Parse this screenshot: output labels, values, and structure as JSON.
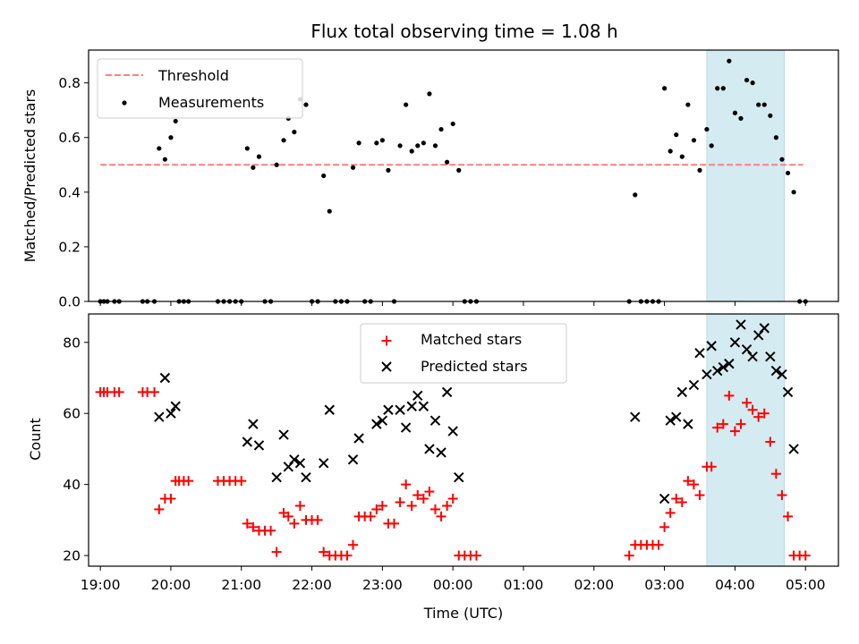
{
  "chart_data": [
    {
      "type": "scatter",
      "title": "Flux total observing time = 1.08 h",
      "xlabel": "",
      "ylabel": "Matched/Predicted stars",
      "xlim": [
        "18:50",
        "05:28"
      ],
      "ylim": [
        0,
        0.92
      ],
      "yticks": [
        0.0,
        0.2,
        0.4,
        0.6,
        0.8
      ],
      "ytick_labels": [
        "0.0",
        "0.2",
        "0.4",
        "0.6",
        "0.8"
      ],
      "shaded_span": [
        "03:36",
        "04:42"
      ],
      "shade_color": "#d4ebf1",
      "threshold": {
        "name": "Threshold",
        "y": 0.5,
        "x_range": [
          "19:00",
          "04:58"
        ],
        "color": "#ff7f7f"
      },
      "legend": {
        "position": "upper left",
        "entries": [
          "Threshold",
          "Measurements"
        ]
      },
      "series": [
        {
          "name": "Measurements",
          "color": "#000000",
          "points": [
            [
              "19:00",
              0
            ],
            [
              "19:03",
              0
            ],
            [
              "19:06",
              0
            ],
            [
              "19:12",
              0
            ],
            [
              "19:16",
              0
            ],
            [
              "19:36",
              0
            ],
            [
              "19:40",
              0
            ],
            [
              "19:46",
              0
            ],
            [
              "19:50",
              0.56
            ],
            [
              "19:55",
              0.52
            ],
            [
              "20:00",
              0.6
            ],
            [
              "20:04",
              0.66
            ],
            [
              "20:07",
              0
            ],
            [
              "20:11",
              0
            ],
            [
              "20:15",
              0
            ],
            [
              "20:40",
              0
            ],
            [
              "20:45",
              0
            ],
            [
              "20:50",
              0
            ],
            [
              "20:55",
              0
            ],
            [
              "21:00",
              0
            ],
            [
              "21:05",
              0.56
            ],
            [
              "21:10",
              0.49
            ],
            [
              "21:15",
              0.53
            ],
            [
              "21:20",
              0
            ],
            [
              "21:25",
              0
            ],
            [
              "21:30",
              0.5
            ],
            [
              "21:36",
              0.59
            ],
            [
              "21:40",
              0.67
            ],
            [
              "21:45",
              0.62
            ],
            [
              "21:50",
              0.74
            ],
            [
              "21:55",
              0.72
            ],
            [
              "22:00",
              0
            ],
            [
              "22:05",
              0
            ],
            [
              "22:10",
              0.46
            ],
            [
              "22:15",
              0.33
            ],
            [
              "22:20",
              0
            ],
            [
              "22:25",
              0
            ],
            [
              "22:30",
              0
            ],
            [
              "22:35",
              0.49
            ],
            [
              "22:40",
              0.58
            ],
            [
              "22:45",
              0
            ],
            [
              "22:50",
              0
            ],
            [
              "22:55",
              0.58
            ],
            [
              "23:00",
              0.59
            ],
            [
              "23:05",
              0.48
            ],
            [
              "23:10",
              0
            ],
            [
              "23:15",
              0.57
            ],
            [
              "23:20",
              0.72
            ],
            [
              "23:25",
              0.55
            ],
            [
              "23:30",
              0.57
            ],
            [
              "23:35",
              0.58
            ],
            [
              "23:40",
              0.76
            ],
            [
              "23:45",
              0.57
            ],
            [
              "23:50",
              0.63
            ],
            [
              "23:55",
              0.51
            ],
            [
              "00:00",
              0.65
            ],
            [
              "00:05",
              0.48
            ],
            [
              "00:10",
              0
            ],
            [
              "00:15",
              0
            ],
            [
              "00:20",
              0
            ],
            [
              "02:30",
              0
            ],
            [
              "02:35",
              0.39
            ],
            [
              "02:40",
              0
            ],
            [
              "02:45",
              0
            ],
            [
              "02:50",
              0
            ],
            [
              "02:55",
              0
            ],
            [
              "03:00",
              0.78
            ],
            [
              "03:05",
              0.55
            ],
            [
              "03:10",
              0.61
            ],
            [
              "03:15",
              0.53
            ],
            [
              "03:20",
              0.72
            ],
            [
              "03:25",
              0.59
            ],
            [
              "03:30",
              0.48
            ],
            [
              "03:36",
              0.63
            ],
            [
              "03:40",
              0.57
            ],
            [
              "03:45",
              0.78
            ],
            [
              "03:50",
              0.78
            ],
            [
              "03:55",
              0.88
            ],
            [
              "04:00",
              0.69
            ],
            [
              "04:05",
              0.67
            ],
            [
              "04:10",
              0.81
            ],
            [
              "04:15",
              0.8
            ],
            [
              "04:20",
              0.72
            ],
            [
              "04:25",
              0.72
            ],
            [
              "04:30",
              0.68
            ],
            [
              "04:35",
              0.6
            ],
            [
              "04:40",
              0.52
            ],
            [
              "04:45",
              0.47
            ],
            [
              "04:50",
              0.4
            ],
            [
              "04:55",
              0
            ],
            [
              "05:00",
              0
            ]
          ]
        }
      ]
    },
    {
      "type": "scatter",
      "title": "",
      "xlabel": "Time (UTC)",
      "ylabel": "Count",
      "xlim": [
        "18:50",
        "05:28"
      ],
      "ylim": [
        17,
        88
      ],
      "yticks": [
        20,
        40,
        60,
        80
      ],
      "ytick_labels": [
        "20",
        "40",
        "60",
        "80"
      ],
      "xticks": [
        "19:00",
        "20:00",
        "21:00",
        "22:00",
        "23:00",
        "00:00",
        "01:00",
        "02:00",
        "03:00",
        "04:00",
        "05:00"
      ],
      "shaded_span": [
        "03:36",
        "04:42"
      ],
      "shade_color": "#d4ebf1",
      "legend": {
        "position": "upper center",
        "entries": [
          "Matched stars",
          "Predicted stars"
        ]
      },
      "series": [
        {
          "name": "Matched stars",
          "marker": "+",
          "color": "#ff0000",
          "points": [
            [
              "19:00",
              66
            ],
            [
              "19:03",
              66
            ],
            [
              "19:06",
              66
            ],
            [
              "19:12",
              66
            ],
            [
              "19:16",
              66
            ],
            [
              "19:36",
              66
            ],
            [
              "19:40",
              66
            ],
            [
              "19:46",
              66
            ],
            [
              "19:50",
              33
            ],
            [
              "19:55",
              36
            ],
            [
              "20:00",
              36
            ],
            [
              "20:04",
              41
            ],
            [
              "20:07",
              41
            ],
            [
              "20:11",
              41
            ],
            [
              "20:15",
              41
            ],
            [
              "20:40",
              41
            ],
            [
              "20:45",
              41
            ],
            [
              "20:50",
              41
            ],
            [
              "20:55",
              41
            ],
            [
              "21:00",
              41
            ],
            [
              "21:05",
              29
            ],
            [
              "21:10",
              28
            ],
            [
              "21:15",
              27
            ],
            [
              "21:20",
              27
            ],
            [
              "21:25",
              27
            ],
            [
              "21:30",
              21
            ],
            [
              "21:36",
              32
            ],
            [
              "21:40",
              31
            ],
            [
              "21:45",
              29
            ],
            [
              "21:50",
              34
            ],
            [
              "21:55",
              30
            ],
            [
              "22:00",
              30
            ],
            [
              "22:05",
              30
            ],
            [
              "22:10",
              21
            ],
            [
              "22:15",
              20
            ],
            [
              "22:20",
              20
            ],
            [
              "22:25",
              20
            ],
            [
              "22:30",
              20
            ],
            [
              "22:35",
              23
            ],
            [
              "22:40",
              31
            ],
            [
              "22:45",
              31
            ],
            [
              "22:50",
              31
            ],
            [
              "22:55",
              33
            ],
            [
              "23:00",
              34
            ],
            [
              "23:05",
              29
            ],
            [
              "23:10",
              29
            ],
            [
              "23:15",
              35
            ],
            [
              "23:20",
              40
            ],
            [
              "23:25",
              34
            ],
            [
              "23:30",
              37
            ],
            [
              "23:35",
              36
            ],
            [
              "23:40",
              38
            ],
            [
              "23:45",
              33
            ],
            [
              "23:50",
              31
            ],
            [
              "23:55",
              34
            ],
            [
              "00:00",
              36
            ],
            [
              "00:05",
              20
            ],
            [
              "00:10",
              20
            ],
            [
              "00:15",
              20
            ],
            [
              "00:20",
              20
            ],
            [
              "02:30",
              20
            ],
            [
              "02:35",
              23
            ],
            [
              "02:40",
              23
            ],
            [
              "02:45",
              23
            ],
            [
              "02:50",
              23
            ],
            [
              "02:55",
              23
            ],
            [
              "03:00",
              28
            ],
            [
              "03:05",
              32
            ],
            [
              "03:10",
              36
            ],
            [
              "03:15",
              35
            ],
            [
              "03:20",
              41
            ],
            [
              "03:25",
              40
            ],
            [
              "03:30",
              37
            ],
            [
              "03:36",
              45
            ],
            [
              "03:40",
              45
            ],
            [
              "03:45",
              56
            ],
            [
              "03:50",
              57
            ],
            [
              "03:55",
              65
            ],
            [
              "04:00",
              55
            ],
            [
              "04:05",
              57
            ],
            [
              "04:10",
              63
            ],
            [
              "04:15",
              61
            ],
            [
              "04:20",
              59
            ],
            [
              "04:25",
              60
            ],
            [
              "04:30",
              52
            ],
            [
              "04:35",
              43
            ],
            [
              "04:40",
              37
            ],
            [
              "04:45",
              31
            ],
            [
              "04:50",
              20
            ],
            [
              "04:55",
              20
            ],
            [
              "05:00",
              20
            ]
          ]
        },
        {
          "name": "Predicted stars",
          "marker": "x",
          "color": "#000000",
          "points": [
            [
              "19:50",
              59
            ],
            [
              "19:55",
              70
            ],
            [
              "20:00",
              60
            ],
            [
              "20:04",
              62
            ],
            [
              "21:05",
              52
            ],
            [
              "21:10",
              57
            ],
            [
              "21:15",
              51
            ],
            [
              "21:30",
              42
            ],
            [
              "21:36",
              54
            ],
            [
              "21:40",
              45
            ],
            [
              "21:45",
              47
            ],
            [
              "21:50",
              46
            ],
            [
              "21:55",
              42
            ],
            [
              "22:10",
              46
            ],
            [
              "22:15",
              61
            ],
            [
              "22:35",
              47
            ],
            [
              "22:40",
              53
            ],
            [
              "22:55",
              57
            ],
            [
              "23:00",
              58
            ],
            [
              "23:05",
              61
            ],
            [
              "23:15",
              61
            ],
            [
              "23:20",
              56
            ],
            [
              "23:25",
              62
            ],
            [
              "23:30",
              65
            ],
            [
              "23:35",
              62
            ],
            [
              "23:40",
              50
            ],
            [
              "23:45",
              58
            ],
            [
              "23:50",
              49
            ],
            [
              "23:55",
              66
            ],
            [
              "00:00",
              55
            ],
            [
              "00:05",
              42
            ],
            [
              "02:35",
              59
            ],
            [
              "03:00",
              36
            ],
            [
              "03:05",
              58
            ],
            [
              "03:10",
              59
            ],
            [
              "03:15",
              66
            ],
            [
              "03:20",
              57
            ],
            [
              "03:25",
              68
            ],
            [
              "03:30",
              77
            ],
            [
              "03:36",
              71
            ],
            [
              "03:40",
              79
            ],
            [
              "03:45",
              72
            ],
            [
              "03:50",
              73
            ],
            [
              "03:55",
              74
            ],
            [
              "04:00",
              80
            ],
            [
              "04:05",
              85
            ],
            [
              "04:10",
              78
            ],
            [
              "04:15",
              76
            ],
            [
              "04:20",
              82
            ],
            [
              "04:25",
              84
            ],
            [
              "04:30",
              76
            ],
            [
              "04:35",
              72
            ],
            [
              "04:40",
              71
            ],
            [
              "04:45",
              66
            ],
            [
              "04:50",
              50
            ]
          ]
        }
      ]
    }
  ]
}
